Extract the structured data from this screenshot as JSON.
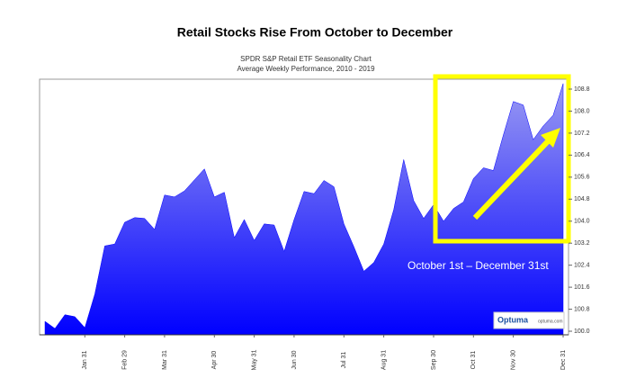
{
  "chart_data": {
    "type": "area",
    "title": "Retail Stocks Rise From October to December",
    "subtitle": [
      "SPDR S&P Retail ETF Seasonality Chart",
      "Average Weekly Performance, 2010 - 2019"
    ],
    "annotation": "October 1st – December 31st",
    "watermark": [
      "Optuma",
      "optuma.com"
    ],
    "color": "#0000ff",
    "categories": [
      null,
      null,
      null,
      null,
      "Jan 31",
      null,
      null,
      null,
      "Feb 29",
      null,
      null,
      null,
      "Mar 31",
      null,
      null,
      null,
      null,
      "Apr 30",
      null,
      null,
      null,
      "May 31",
      null,
      null,
      null,
      "Jun 30",
      null,
      null,
      null,
      null,
      "Jul 31",
      null,
      null,
      null,
      "Aug 31",
      null,
      null,
      null,
      null,
      "Sep 30",
      null,
      null,
      null,
      "Oct 31",
      null,
      null,
      null,
      "Nov 30",
      null,
      null,
      null,
      null,
      "Dec 31"
    ],
    "values": [
      100.36,
      100.1,
      100.6,
      100.53,
      100.13,
      101.35,
      103.1,
      103.17,
      103.96,
      104.13,
      104.1,
      103.7,
      104.95,
      104.88,
      105.1,
      105.5,
      105.9,
      104.88,
      105.05,
      103.4,
      104.06,
      103.3,
      103.9,
      103.86,
      102.9,
      104.06,
      105.08,
      105.0,
      105.48,
      105.25,
      103.9,
      103.07,
      102.18,
      102.5,
      103.17,
      104.42,
      106.24,
      104.75,
      104.1,
      104.6,
      104.0,
      104.46,
      104.7,
      105.55,
      105.94,
      105.84,
      107.13,
      108.35,
      108.22,
      106.96,
      107.46,
      107.85,
      109.0
    ],
    "ylim": [
      99.87,
      109.16
    ],
    "yticks": [
      {
        "value": 100,
        "label": "100.0"
      },
      100.8,
      101.6,
      102.4,
      103.2,
      {
        "value": 104,
        "label": "104.0"
      },
      104.8,
      105.6,
      106.4,
      107.2,
      {
        "value": 108,
        "label": "108.0"
      },
      108.8
    ]
  }
}
